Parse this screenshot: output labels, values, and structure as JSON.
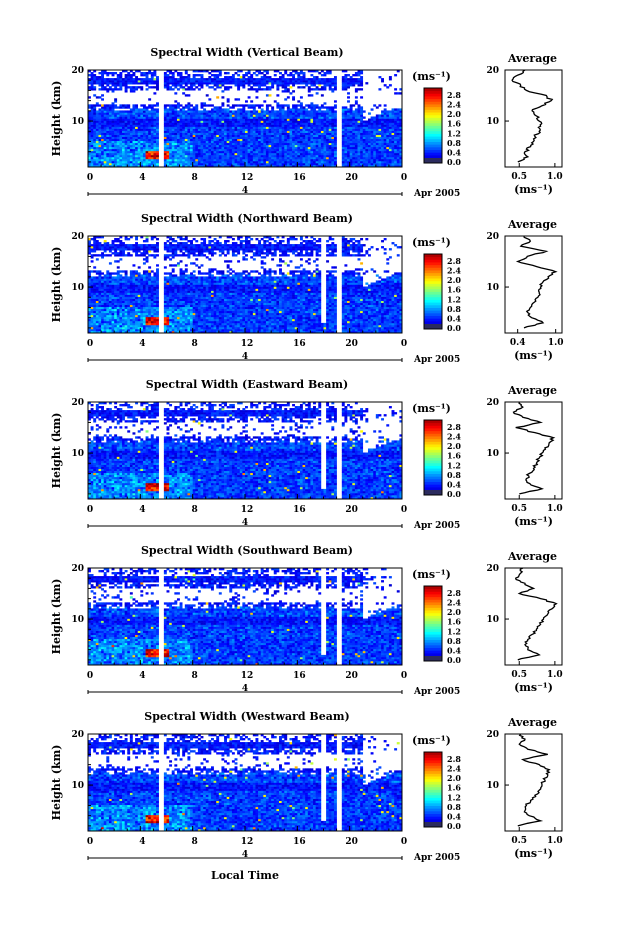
{
  "figure": {
    "xlabel": "Local Time",
    "date_label": "Apr 2005",
    "day_label": "4",
    "colorbar_unit": "(ms⁻¹)",
    "colorbar_ticks": [
      "0.0",
      "0.4",
      "0.8",
      "1.2",
      "1.6",
      "2.0",
      "2.4",
      "2.8"
    ],
    "height_label": "Height (km)",
    "average_title": "Average",
    "average_unit": "(ms⁻¹)"
  },
  "chart_data": [
    {
      "type": "heatmap",
      "title": "Spectral Width (Vertical Beam)",
      "ylabel": "Height (km)",
      "xlim": [
        0,
        24
      ],
      "ylim": [
        1,
        20
      ],
      "xticks": [
        "0",
        "4",
        "8",
        "12",
        "16",
        "20",
        "0"
      ],
      "yticks": [
        "20",
        "10"
      ],
      "colorbar": {
        "unit": "(ms⁻¹)",
        "range": [
          0.0,
          2.8
        ]
      },
      "average_profile": {
        "title": "Average",
        "xlabel": "(ms⁻¹)",
        "xticks": [
          "0.5",
          "1.0"
        ],
        "xlim": [
          0.3,
          1.1
        ],
        "heights": [
          2,
          3,
          4,
          5,
          6,
          7,
          8,
          9,
          10,
          11,
          12,
          13,
          14,
          15,
          16,
          17,
          18,
          19,
          20
        ],
        "values": [
          0.48,
          0.62,
          0.58,
          0.66,
          0.7,
          0.72,
          0.78,
          0.8,
          0.78,
          0.74,
          0.68,
          0.82,
          0.95,
          0.88,
          0.6,
          0.52,
          0.4,
          0.48,
          0.58
        ]
      }
    },
    {
      "type": "heatmap",
      "title": "Spectral Width (Northward Beam)",
      "ylabel": "Height (km)",
      "xlim": [
        0,
        24
      ],
      "ylim": [
        1,
        20
      ],
      "xticks": [
        "0",
        "4",
        "8",
        "12",
        "16",
        "20",
        "0"
      ],
      "yticks": [
        "20",
        "10"
      ],
      "colorbar": {
        "unit": "(ms⁻¹)",
        "range": [
          0.0,
          2.8
        ]
      },
      "average_profile": {
        "title": "Average",
        "xlabel": "(ms⁻¹)",
        "xticks": [
          "0.4",
          "1.0"
        ],
        "xlim": [
          0.2,
          1.1
        ],
        "heights": [
          2,
          3,
          4,
          5,
          6,
          7,
          8,
          9,
          10,
          11,
          12,
          13,
          14,
          15,
          16,
          17,
          18,
          19,
          20
        ],
        "values": [
          0.5,
          0.8,
          0.62,
          0.56,
          0.6,
          0.66,
          0.72,
          0.74,
          0.76,
          0.8,
          0.88,
          1.0,
          0.7,
          0.4,
          0.55,
          0.85,
          0.45,
          0.6,
          0.5
        ]
      }
    },
    {
      "type": "heatmap",
      "title": "Spectral Width (Eastward Beam)",
      "ylabel": "Height (km)",
      "xlim": [
        0,
        24
      ],
      "ylim": [
        1,
        20
      ],
      "xticks": [
        "0",
        "4",
        "8",
        "12",
        "16",
        "20",
        "0"
      ],
      "yticks": [
        "20",
        "10"
      ],
      "colorbar": {
        "unit": "(ms⁻¹)",
        "range": [
          0.0,
          2.8
        ]
      },
      "average_profile": {
        "title": "Average",
        "xlabel": "(ms⁻¹)",
        "xticks": [
          "0.5",
          "1.0"
        ],
        "xlim": [
          0.3,
          1.1
        ],
        "heights": [
          2,
          3,
          4,
          5,
          6,
          7,
          8,
          9,
          10,
          11,
          12,
          13,
          14,
          15,
          16,
          17,
          18,
          19,
          20
        ],
        "values": [
          0.5,
          0.82,
          0.65,
          0.6,
          0.64,
          0.7,
          0.74,
          0.78,
          0.82,
          0.86,
          0.92,
          0.98,
          0.72,
          0.45,
          0.8,
          0.55,
          0.42,
          0.55,
          0.5
        ]
      }
    },
    {
      "type": "heatmap",
      "title": "Spectral Width (Southward Beam)",
      "ylabel": "Height (km)",
      "xlim": [
        0,
        24
      ],
      "ylim": [
        1,
        20
      ],
      "xticks": [
        "0",
        "4",
        "8",
        "12",
        "16",
        "20",
        "0"
      ],
      "yticks": [
        "20",
        "10"
      ],
      "colorbar": {
        "unit": "(ms⁻¹)",
        "range": [
          0.0,
          2.8
        ]
      },
      "average_profile": {
        "title": "Average",
        "xlabel": "(ms⁻¹)",
        "xticks": [
          "0.5",
          "1.0"
        ],
        "xlim": [
          0.3,
          1.1
        ],
        "heights": [
          2,
          3,
          4,
          5,
          6,
          7,
          8,
          9,
          10,
          11,
          12,
          13,
          14,
          15,
          16,
          17,
          18,
          19,
          20
        ],
        "values": [
          0.48,
          0.78,
          0.62,
          0.58,
          0.62,
          0.68,
          0.74,
          0.8,
          0.84,
          0.9,
          0.96,
          1.02,
          0.8,
          0.5,
          0.7,
          0.58,
          0.45,
          0.52,
          0.55
        ]
      }
    },
    {
      "type": "heatmap",
      "title": "Spectral Width (Westward Beam)",
      "ylabel": "Height (km)",
      "xlim": [
        0,
        24
      ],
      "ylim": [
        1,
        20
      ],
      "xticks": [
        "0",
        "4",
        "8",
        "12",
        "16",
        "20",
        "0"
      ],
      "yticks": [
        "20",
        "10"
      ],
      "colorbar": {
        "unit": "(ms⁻¹)",
        "range": [
          0.0,
          2.8
        ]
      },
      "average_profile": {
        "title": "Average",
        "xlabel": "(ms⁻¹)",
        "xticks": [
          "0.5",
          "1.0"
        ],
        "xlim": [
          0.3,
          1.1
        ],
        "heights": [
          2,
          3,
          4,
          5,
          6,
          7,
          8,
          9,
          10,
          11,
          12,
          13,
          14,
          15,
          16,
          17,
          18,
          19,
          20
        ],
        "values": [
          0.48,
          0.8,
          0.64,
          0.58,
          0.6,
          0.66,
          0.72,
          0.78,
          0.82,
          0.86,
          0.9,
          0.92,
          0.78,
          0.55,
          0.9,
          0.62,
          0.5,
          0.58,
          0.52
        ]
      }
    }
  ]
}
